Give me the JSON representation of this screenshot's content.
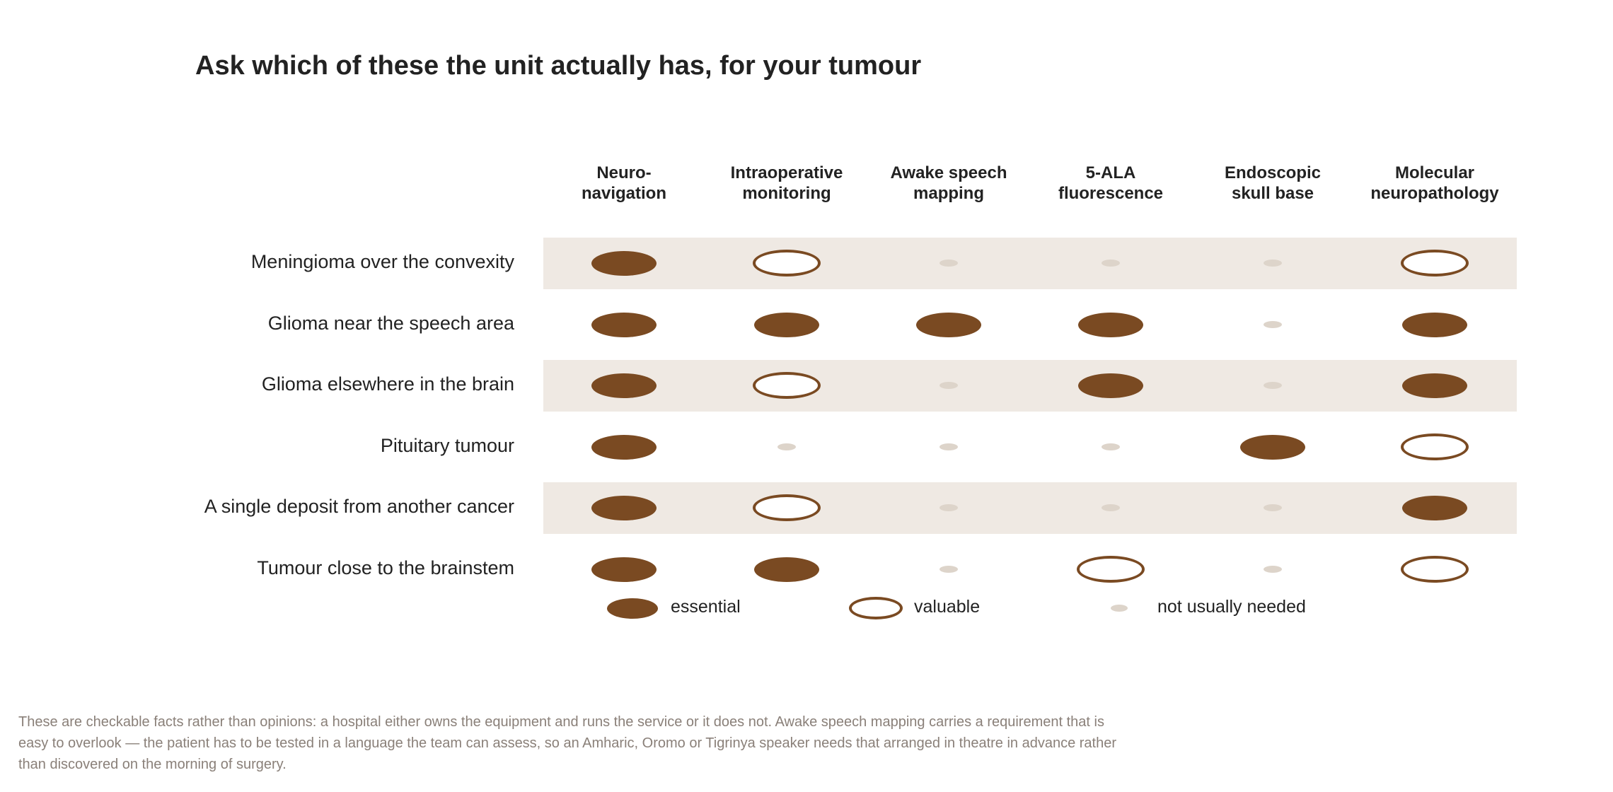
{
  "title": "Ask which of these the unit actually has, for your tumour",
  "colors": {
    "essential": "#7a4a22",
    "valuable": "#7a4a22",
    "not_needed": "#ddd4ca",
    "band": "#efe9e3",
    "footnote_text": "#8a8079"
  },
  "columns": [
    "Neuro-\nnavigation",
    "Intraoperative\nmonitoring",
    "Awake speech\nmapping",
    "5-ALA\nfluorescence",
    "Endoscopic\nskull base",
    "Molecular\nneuropathology"
  ],
  "rows": [
    {
      "label": "Meningioma over the convexity",
      "shaded": true,
      "values": [
        "essential",
        "valuable",
        "not_needed",
        "not_needed",
        "not_needed",
        "valuable"
      ]
    },
    {
      "label": "Glioma near the speech area",
      "shaded": false,
      "values": [
        "essential",
        "essential",
        "essential",
        "essential",
        "not_needed",
        "essential"
      ]
    },
    {
      "label": "Glioma elsewhere in the brain",
      "shaded": true,
      "values": [
        "essential",
        "valuable",
        "not_needed",
        "essential",
        "not_needed",
        "essential"
      ]
    },
    {
      "label": "Pituitary tumour",
      "shaded": false,
      "values": [
        "essential",
        "not_needed",
        "not_needed",
        "not_needed",
        "essential",
        "valuable"
      ]
    },
    {
      "label": "A single deposit from another cancer",
      "shaded": true,
      "values": [
        "essential",
        "valuable",
        "not_needed",
        "not_needed",
        "not_needed",
        "essential"
      ]
    },
    {
      "label": "Tumour close to the brainstem",
      "shaded": false,
      "values": [
        "essential",
        "essential",
        "not_needed",
        "valuable",
        "not_needed",
        "valuable"
      ]
    }
  ],
  "legend": [
    {
      "key": "essential",
      "label": "essential"
    },
    {
      "key": "valuable",
      "label": "valuable"
    },
    {
      "key": "not_needed",
      "label": "not usually needed"
    }
  ],
  "footnote": "These are checkable facts rather than opinions: a hospital either owns the equipment and runs the service or it does not. Awake speech mapping carries a requirement that is easy to overlook — the patient has to be tested in a language the team can assess, so an Amharic, Oromo or Tigrinya speaker needs that arranged in theatre in advance rather than discovered on the morning of surgery."
}
